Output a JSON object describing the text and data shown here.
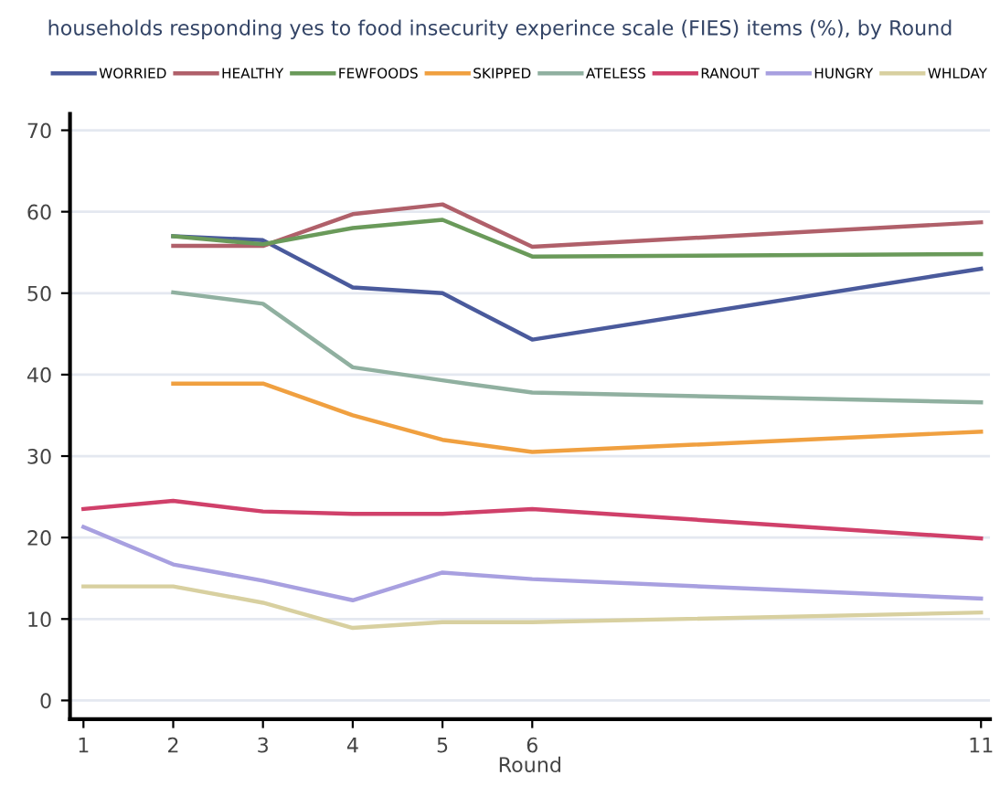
{
  "chart_data": {
    "type": "line",
    "title": "households responding yes to food insecurity experince scale (FIES) items (%), by Round",
    "xlabel": "Round",
    "xlim": [
      0.85,
      11.1
    ],
    "xticks": [
      1,
      2,
      3,
      4,
      5,
      6,
      11
    ],
    "ylim": [
      -2.3,
      72
    ],
    "yticks": [
      0,
      10,
      20,
      30,
      40,
      50,
      60,
      70
    ],
    "grid": "y",
    "legend": "top",
    "line_style": "solid",
    "marker": "none",
    "series": [
      {
        "name": "WORRIED",
        "color": "#4a5a9c",
        "x": [
          2,
          3,
          4,
          5,
          6,
          11
        ],
        "values": [
          57,
          56.5,
          50.7,
          50,
          44.3,
          53
        ]
      },
      {
        "name": "HEALTHY",
        "color": "#b0606a",
        "x": [
          2,
          3,
          4,
          5,
          6,
          11
        ],
        "values": [
          55.8,
          55.8,
          59.7,
          60.9,
          55.7,
          58.7
        ]
      },
      {
        "name": "FEWFOODS",
        "color": "#6a9a5a",
        "x": [
          2,
          3,
          4,
          5,
          6,
          11
        ],
        "values": [
          57,
          56,
          58,
          59,
          54.5,
          54.8
        ]
      },
      {
        "name": "SKIPPED",
        "color": "#f0a040",
        "x": [
          2,
          3,
          4,
          5,
          6,
          11
        ],
        "values": [
          38.9,
          38.9,
          35,
          32,
          30.5,
          33
        ]
      },
      {
        "name": "ATELESS",
        "color": "#90b0a0",
        "x": [
          2,
          3,
          4,
          5,
          6,
          11
        ],
        "values": [
          50.1,
          48.7,
          40.9,
          39.3,
          37.8,
          36.6
        ]
      },
      {
        "name": "RANOUT",
        "color": "#d0406a",
        "x": [
          1,
          2,
          3,
          4,
          5,
          6,
          11
        ],
        "values": [
          23.5,
          24.5,
          23.2,
          22.9,
          22.9,
          23.5,
          19.9
        ]
      },
      {
        "name": "HUNGRY",
        "color": "#a8a0e0",
        "x": [
          1,
          2,
          3,
          4,
          5,
          6,
          11
        ],
        "values": [
          21.3,
          16.7,
          14.7,
          12.3,
          15.7,
          14.9,
          12.5
        ]
      },
      {
        "name": "WHLDAY",
        "color": "#d8d0a0",
        "x": [
          1,
          2,
          3,
          4,
          5,
          6,
          11
        ],
        "values": [
          14,
          14,
          12,
          8.9,
          9.6,
          9.6,
          10.8
        ]
      }
    ]
  }
}
